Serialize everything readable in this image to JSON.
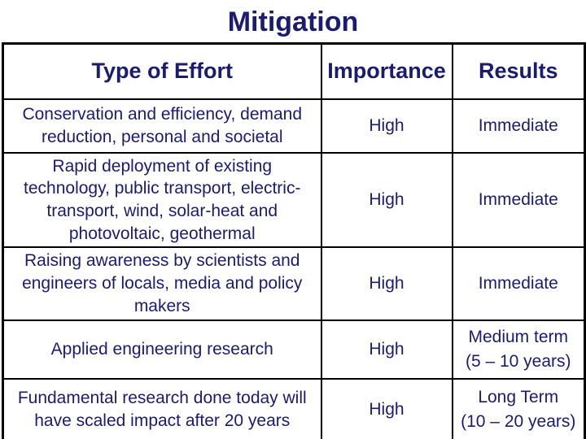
{
  "slide": {
    "title": "Mitigation",
    "colors": {
      "heading_text": "#1b1b6f",
      "body_text": "#1b1b6f",
      "importance_text": "#cc1111",
      "table_border": "#000000",
      "background": "#ffffff"
    },
    "table": {
      "headers": [
        "Type of Effort",
        "Importance",
        "Results"
      ],
      "rows": [
        {
          "effort": "Conservation and efficiency, demand\nreduction, personal and societal",
          "importance": "High",
          "results": "Immediate"
        },
        {
          "effort": "Rapid deployment of existing\ntechnology, public transport, electric-\ntransport, wind, solar-heat and\nphotovoltaic, geothermal",
          "importance": "High",
          "results": "Immediate"
        },
        {
          "effort": "Raising awareness by scientists and\nengineers of locals, media and policy\nmakers",
          "importance": "High",
          "results": "Immediate"
        },
        {
          "effort": "Applied engineering research",
          "importance": "High",
          "results": "Medium term\n(5 – 10 years)"
        },
        {
          "effort": "Fundamental research done today will\nhave scaled impact after 20 years",
          "importance": "High",
          "results": "Long Term\n(10 – 20 years)"
        }
      ]
    }
  }
}
